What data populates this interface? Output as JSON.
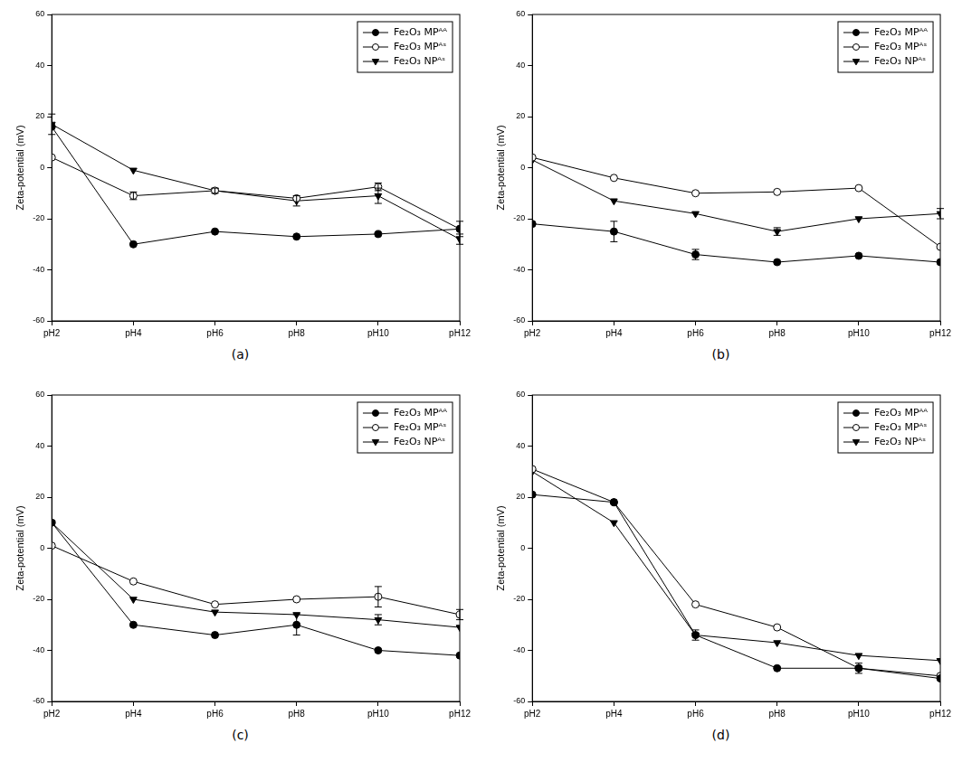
{
  "chart_data": [
    {
      "type": "line",
      "label": "(a)",
      "y_label": "Zeta-potential (mV)",
      "categories": [
        "pH2",
        "pH4",
        "pH6",
        "pH8",
        "pH10",
        "pH12"
      ],
      "ylim": [
        -60,
        60
      ],
      "yticks": [
        -60,
        -40,
        -20,
        0,
        20,
        40,
        60
      ],
      "grid": false,
      "legend": "upper right",
      "series": [
        {
          "name": "Fe₂O₃ MPᴬᴬ",
          "color": "#000000",
          "marker": "circle",
          "values": [
            16,
            -30,
            -25,
            -27,
            -26,
            -24
          ],
          "errors": [
            null,
            null,
            null,
            null,
            null,
            null
          ]
        },
        {
          "name": "Fe₂O₃ MPᴬˢ",
          "color": "#000000",
          "marker": "open_circle",
          "values": [
            4,
            -11,
            -9,
            -12,
            -7.5,
            -24
          ],
          "errors": [
            null,
            1.5,
            null,
            null,
            1.5,
            3
          ]
        },
        {
          "name": "Fe₂O₃ NPᴬˢ",
          "color": "#000000",
          "marker": "triangle_down",
          "values": [
            17,
            -1,
            -9,
            -13,
            -11,
            -28
          ],
          "errors": [
            4,
            null,
            1,
            2,
            3,
            2
          ]
        }
      ]
    },
    {
      "type": "line",
      "label": "(b)",
      "y_label": "Zeta-potential (mV)",
      "categories": [
        "pH2",
        "pH4",
        "pH6",
        "pH8",
        "pH10",
        "pH12"
      ],
      "ylim": [
        -60,
        60
      ],
      "yticks": [
        -60,
        -40,
        -20,
        0,
        20,
        40,
        60
      ],
      "grid": false,
      "legend": "upper right",
      "series": [
        {
          "name": "Fe₂O₃ MPᴬᴬ",
          "color": "#000000",
          "marker": "circle",
          "values": [
            -22,
            -25,
            -34,
            -37,
            -34.5,
            -37
          ],
          "errors": [
            null,
            4,
            2,
            null,
            null,
            null
          ]
        },
        {
          "name": "Fe₂O₃ MPᴬˢ",
          "color": "#000000",
          "marker": "open_circle",
          "values": [
            4,
            -4,
            -10,
            -9.5,
            -8,
            -31
          ],
          "errors": [
            null,
            null,
            null,
            null,
            null,
            null
          ]
        },
        {
          "name": "Fe₂O₃ NPᴬˢ",
          "color": "#000000",
          "marker": "triangle_down",
          "values": [
            3,
            -13,
            -18,
            -25,
            -20,
            -18
          ],
          "errors": [
            null,
            null,
            null,
            1.5,
            null,
            2
          ]
        }
      ]
    },
    {
      "type": "line",
      "label": "(c)",
      "y_label": "Zeta-potential (mV)",
      "categories": [
        "pH2",
        "pH4",
        "pH6",
        "pH8",
        "pH10",
        "pH12"
      ],
      "ylim": [
        -60,
        60
      ],
      "yticks": [
        -60,
        -40,
        -20,
        0,
        20,
        40,
        60
      ],
      "grid": false,
      "legend": "upper right",
      "series": [
        {
          "name": "Fe₂O₃ MPᴬᴬ",
          "color": "#000000",
          "marker": "circle",
          "values": [
            10,
            -30,
            -34,
            -30,
            -40,
            -42
          ],
          "errors": [
            null,
            null,
            null,
            4,
            null,
            null
          ]
        },
        {
          "name": "Fe₂O₃ MPᴬˢ",
          "color": "#000000",
          "marker": "open_circle",
          "values": [
            1,
            -13,
            -22,
            -20,
            -19,
            -26
          ],
          "errors": [
            null,
            null,
            null,
            null,
            4,
            2
          ]
        },
        {
          "name": "Fe₂O₃ NPᴬˢ",
          "color": "#000000",
          "marker": "triangle_down",
          "values": [
            10,
            -20,
            -25,
            -26,
            -28,
            -31
          ],
          "errors": [
            null,
            null,
            null,
            null,
            2,
            null
          ]
        }
      ]
    },
    {
      "type": "line",
      "label": "(d)",
      "y_label": "Zeta-potential (mV)",
      "categories": [
        "pH2",
        "pH4",
        "pH6",
        "pH8",
        "pH10",
        "pH12"
      ],
      "ylim": [
        -60,
        60
      ],
      "yticks": [
        -60,
        -40,
        -20,
        0,
        20,
        40,
        60
      ],
      "grid": false,
      "legend": "upper right",
      "series": [
        {
          "name": "Fe₂O₃ MPᴬᴬ",
          "color": "#000000",
          "marker": "circle",
          "values": [
            21,
            18,
            -34,
            -47,
            -47,
            -51
          ],
          "errors": [
            null,
            null,
            null,
            null,
            null,
            null
          ]
        },
        {
          "name": "Fe₂O₃ MPᴬˢ",
          "color": "#000000",
          "marker": "open_circle",
          "values": [
            31,
            18,
            -22,
            -31,
            -47,
            -50
          ],
          "errors": [
            null,
            null,
            null,
            null,
            2,
            null
          ]
        },
        {
          "name": "Fe₂O₃ NPᴬˢ",
          "color": "#000000",
          "marker": "triangle_down",
          "values": [
            30,
            10,
            -34,
            -37,
            -42,
            -44
          ],
          "errors": [
            null,
            null,
            2,
            null,
            null,
            null
          ]
        }
      ]
    }
  ]
}
